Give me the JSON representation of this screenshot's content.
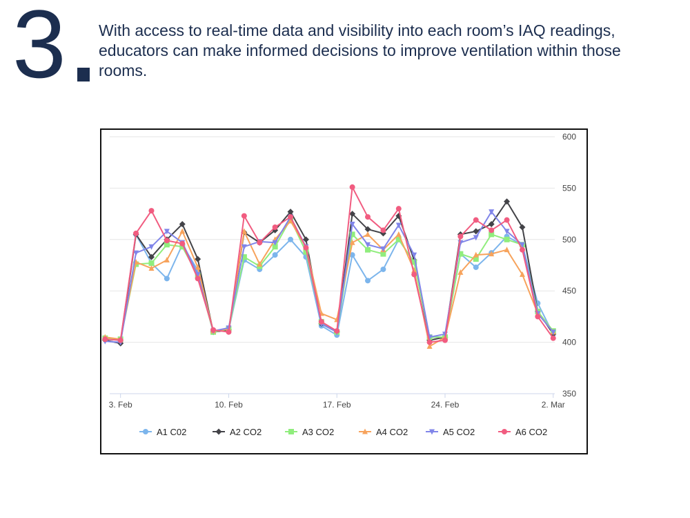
{
  "header": {
    "step_number": "3",
    "description": "With access to real-time data and visibility into each room’s IAQ readings, educators can make informed decisions to improve ventilation within those rooms."
  },
  "colors": {
    "heading": "#1c2e4f",
    "grid": "#e6e6e6",
    "axis": "#ccd6eb",
    "tick_text": "#444444"
  },
  "chart_data": {
    "type": "line",
    "title": "",
    "xlabel": "",
    "ylabel": "",
    "ylim": [
      350,
      600
    ],
    "y_ticks": [
      350,
      400,
      450,
      500,
      550,
      600
    ],
    "y_axis_side": "right",
    "x_ticks": [
      {
        "day": 3,
        "label": "3. Feb"
      },
      {
        "day": 10,
        "label": "10. Feb"
      },
      {
        "day": 17,
        "label": "17. Feb"
      },
      {
        "day": 24,
        "label": "24. Feb"
      },
      {
        "day": 31,
        "label": "2. Mar"
      }
    ],
    "xlim_days": [
      2.3,
      31.1
    ],
    "grid": true,
    "legend_position": "bottom",
    "x": [
      2,
      3,
      4,
      5,
      6,
      7,
      8,
      9,
      10,
      11,
      12,
      13,
      14,
      15,
      16,
      17,
      18,
      19,
      20,
      21,
      22,
      23,
      24,
      25,
      26,
      27,
      28,
      29,
      30,
      31
    ],
    "series": [
      {
        "name": "A1 C02",
        "color": "#7cb5ec",
        "marker": "circle",
        "values": [
          403,
          402,
          505,
          477,
          462,
          495,
          470,
          411,
          412,
          480,
          471,
          485,
          500,
          483,
          416,
          407,
          485,
          460,
          471,
          500,
          478,
          405,
          405,
          486,
          473,
          487,
          503,
          495,
          438,
          408
        ]
      },
      {
        "name": "A2 CO2",
        "color": "#434348",
        "marker": "diamond",
        "values": [
          402,
          399,
          505,
          483,
          500,
          515,
          481,
          410,
          412,
          507,
          497,
          509,
          527,
          500,
          418,
          410,
          525,
          510,
          506,
          523,
          480,
          402,
          405,
          505,
          508,
          515,
          537,
          512,
          430,
          408
        ]
      },
      {
        "name": "A3 CO2",
        "color": "#90ed7d",
        "marker": "square",
        "values": [
          404,
          403,
          476,
          477,
          495,
          493,
          465,
          410,
          413,
          483,
          474,
          493,
          520,
          488,
          420,
          410,
          505,
          490,
          486,
          500,
          478,
          405,
          405,
          486,
          481,
          505,
          500,
          495,
          430,
          411
        ]
      },
      {
        "name": "A4 CO2",
        "color": "#f7a35c",
        "marker": "triangle",
        "values": [
          405,
          403,
          478,
          472,
          480,
          508,
          473,
          411,
          413,
          508,
          476,
          500,
          518,
          493,
          428,
          422,
          497,
          505,
          490,
          505,
          470,
          396,
          405,
          468,
          485,
          486,
          490,
          466,
          428,
          410
        ]
      },
      {
        "name": "A5 CO2",
        "color": "#8085e9",
        "marker": "triangle-down",
        "values": [
          401,
          400,
          487,
          493,
          508,
          497,
          466,
          411,
          414,
          493,
          498,
          497,
          522,
          493,
          418,
          410,
          515,
          495,
          491,
          514,
          485,
          405,
          408,
          497,
          502,
          527,
          508,
          495,
          428,
          410
        ]
      },
      {
        "name": "A6 CO2",
        "color": "#f15c80",
        "marker": "circle",
        "values": [
          403,
          402,
          506,
          528,
          499,
          496,
          462,
          412,
          410,
          523,
          497,
          512,
          522,
          492,
          420,
          411,
          551,
          522,
          509,
          530,
          466,
          400,
          402,
          503,
          519,
          509,
          519,
          490,
          425,
          404
        ]
      }
    ]
  }
}
